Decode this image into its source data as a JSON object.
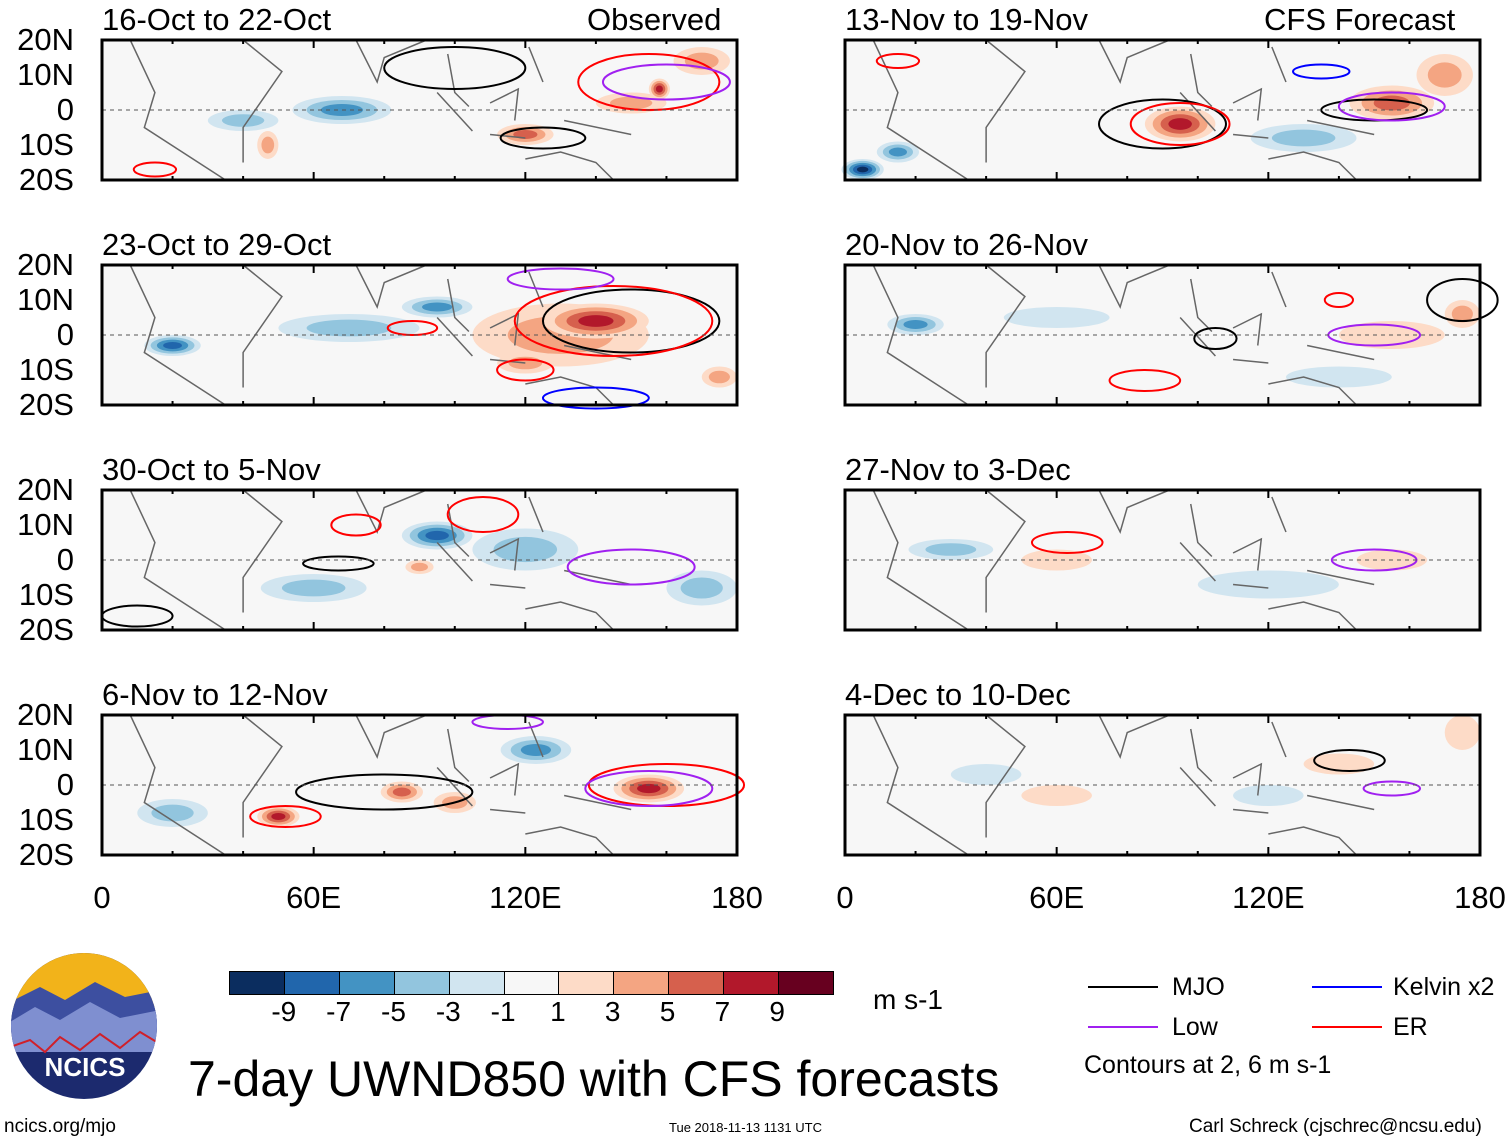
{
  "title": "7-day UWND850 with CFS forecasts",
  "header": {
    "observed_label": "Observed",
    "forecast_label": "CFS Forecast"
  },
  "lat_labels": [
    "20N",
    "10N",
    "0",
    "10S",
    "20S"
  ],
  "lon_labels": [
    "0",
    "60E",
    "120E",
    "180"
  ],
  "panels": [
    {
      "title": "16-Oct to 22-Oct",
      "kind": "observed",
      "anomalies": [
        [
          68,
          0,
          14,
          4,
          -6
        ],
        [
          40,
          -3,
          10,
          3,
          -3
        ],
        [
          120,
          -7,
          8,
          3,
          6
        ],
        [
          150,
          2,
          10,
          3,
          5
        ],
        [
          158,
          6,
          3,
          3,
          9
        ],
        [
          47,
          -10,
          3,
          4,
          5
        ],
        [
          170,
          14,
          8,
          4,
          4
        ]
      ],
      "contours": [
        [
          "MJO",
          100,
          12,
          20,
          6
        ],
        [
          "MJO",
          125,
          -8,
          12,
          3
        ],
        [
          "ER",
          155,
          8,
          20,
          8
        ],
        [
          "Low",
          160,
          8,
          18,
          5
        ],
        [
          "ER",
          15,
          -17,
          6,
          2
        ]
      ]
    },
    {
      "title": "23-Oct to 29-Oct",
      "kind": "observed",
      "anomalies": [
        [
          130,
          0,
          25,
          9,
          4
        ],
        [
          140,
          4,
          15,
          5,
          9
        ],
        [
          95,
          8,
          10,
          3,
          -5
        ],
        [
          120,
          -8,
          8,
          3,
          5
        ],
        [
          20,
          -3,
          8,
          3,
          -7
        ],
        [
          175,
          -12,
          5,
          3,
          5
        ],
        [
          70,
          2,
          20,
          4,
          -3
        ]
      ],
      "contours": [
        [
          "MJO",
          150,
          4,
          25,
          9
        ],
        [
          "ER",
          145,
          4,
          28,
          10
        ],
        [
          "ER",
          120,
          -10,
          8,
          3
        ],
        [
          "ER",
          88,
          2,
          7,
          2
        ],
        [
          "Kelvin",
          140,
          -18,
          15,
          3
        ],
        [
          "Low",
          130,
          16,
          15,
          3
        ]
      ]
    },
    {
      "title": "30-Oct to 5-Nov",
      "kind": "observed",
      "anomalies": [
        [
          95,
          7,
          10,
          4,
          -7
        ],
        [
          90,
          -2,
          4,
          2,
          5
        ],
        [
          120,
          3,
          15,
          6,
          -4
        ],
        [
          60,
          -8,
          15,
          4,
          -3
        ],
        [
          170,
          -8,
          10,
          5,
          -3
        ]
      ],
      "contours": [
        [
          "MJO",
          67,
          -1,
          10,
          2
        ],
        [
          "MJO",
          10,
          -16,
          10,
          3
        ],
        [
          "ER",
          72,
          10,
          7,
          3
        ],
        [
          "Low",
          150,
          -2,
          18,
          5
        ],
        [
          "ER",
          108,
          13,
          10,
          5
        ]
      ]
    },
    {
      "title": "6-Nov to 12-Nov",
      "kind": "observed",
      "anomalies": [
        [
          50,
          -9,
          6,
          3,
          8
        ],
        [
          85,
          -2,
          6,
          3,
          7
        ],
        [
          155,
          -1,
          10,
          4,
          8
        ],
        [
          123,
          10,
          10,
          4,
          -6
        ],
        [
          100,
          -5,
          6,
          3,
          5
        ],
        [
          20,
          -8,
          10,
          4,
          -3
        ]
      ],
      "contours": [
        [
          "MJO",
          80,
          -2,
          25,
          5
        ],
        [
          "ER",
          52,
          -9,
          10,
          3
        ],
        [
          "ER",
          160,
          0,
          22,
          6
        ],
        [
          "Low",
          155,
          -1,
          18,
          5
        ],
        [
          "Low",
          115,
          18,
          10,
          2
        ]
      ]
    },
    {
      "title": "13-Nov to 19-Nov",
      "kind": "forecast",
      "anomalies": [
        [
          95,
          -4,
          10,
          5,
          9
        ],
        [
          155,
          2,
          12,
          5,
          6
        ],
        [
          170,
          10,
          8,
          6,
          4
        ],
        [
          5,
          -17,
          6,
          3,
          -9
        ],
        [
          15,
          -12,
          6,
          3,
          -5
        ],
        [
          130,
          -8,
          15,
          4,
          -3
        ]
      ],
      "contours": [
        [
          "MJO",
          90,
          -4,
          18,
          7
        ],
        [
          "MJO",
          150,
          0,
          15,
          3
        ],
        [
          "ER",
          95,
          -4,
          14,
          6
        ],
        [
          "Low",
          155,
          1,
          15,
          4
        ],
        [
          "Kelvin",
          135,
          11,
          8,
          2
        ],
        [
          "ER",
          15,
          14,
          6,
          2
        ]
      ]
    },
    {
      "title": "20-Nov to 26-Nov",
      "kind": "forecast",
      "anomalies": [
        [
          20,
          3,
          8,
          3,
          -5
        ],
        [
          155,
          0,
          15,
          4,
          3
        ],
        [
          175,
          6,
          5,
          4,
          5
        ],
        [
          60,
          5,
          15,
          3,
          -2
        ],
        [
          140,
          -12,
          15,
          3,
          -2
        ]
      ],
      "contours": [
        [
          "MJO",
          105,
          -1,
          6,
          3
        ],
        [
          "Low",
          150,
          0,
          13,
          3
        ],
        [
          "ER",
          85,
          -13,
          10,
          3
        ],
        [
          "ER",
          140,
          10,
          4,
          2
        ],
        [
          "MJO",
          175,
          10,
          10,
          6
        ]
      ]
    },
    {
      "title": "27-Nov to 3-Dec",
      "kind": "forecast",
      "anomalies": [
        [
          60,
          0,
          10,
          3,
          3
        ],
        [
          155,
          0,
          10,
          3,
          2
        ],
        [
          30,
          3,
          12,
          3,
          -3
        ],
        [
          120,
          -7,
          20,
          4,
          -2
        ]
      ],
      "contours": [
        [
          "ER",
          63,
          5,
          10,
          3
        ],
        [
          "Low",
          150,
          0,
          12,
          3
        ]
      ]
    },
    {
      "title": "4-Dec to 10-Dec",
      "kind": "forecast",
      "anomalies": [
        [
          60,
          -3,
          10,
          3,
          3
        ],
        [
          140,
          6,
          10,
          3,
          3
        ],
        [
          175,
          15,
          5,
          5,
          3
        ],
        [
          120,
          -3,
          10,
          3,
          -2
        ],
        [
          40,
          3,
          10,
          3,
          -2
        ]
      ],
      "contours": [
        [
          "MJO",
          143,
          7,
          10,
          3
        ],
        [
          "Low",
          155,
          -1,
          8,
          2
        ]
      ]
    }
  ],
  "colorbar": {
    "labels": [
      "-9",
      "-7",
      "-5",
      "-3",
      "-1",
      "1",
      "3",
      "5",
      "7",
      "9"
    ],
    "colors": [
      "#0b2d5f",
      "#2166ac",
      "#4393c3",
      "#92c5de",
      "#d1e5f0",
      "#f7f7f7",
      "#fddbc7",
      "#f4a582",
      "#d6604d",
      "#b2182b",
      "#67001f"
    ],
    "units": "m s-1"
  },
  "legend": {
    "items": [
      {
        "label": "MJO",
        "color": "#000000"
      },
      {
        "label": "Kelvin x2",
        "color": "#0000ff"
      },
      {
        "label": "Low",
        "color": "#a020f0"
      },
      {
        "label": "ER",
        "color": "#ff0000"
      }
    ],
    "note": "Contours at 2, 6 m s-1"
  },
  "logo": {
    "text": "NCICS"
  },
  "footer": {
    "url": "ncics.org/mjo",
    "timestamp": "Tue 2018-11-13 1131 UTC",
    "author": "Carl Schreck (cjschrec@ncsu.edu)"
  }
}
